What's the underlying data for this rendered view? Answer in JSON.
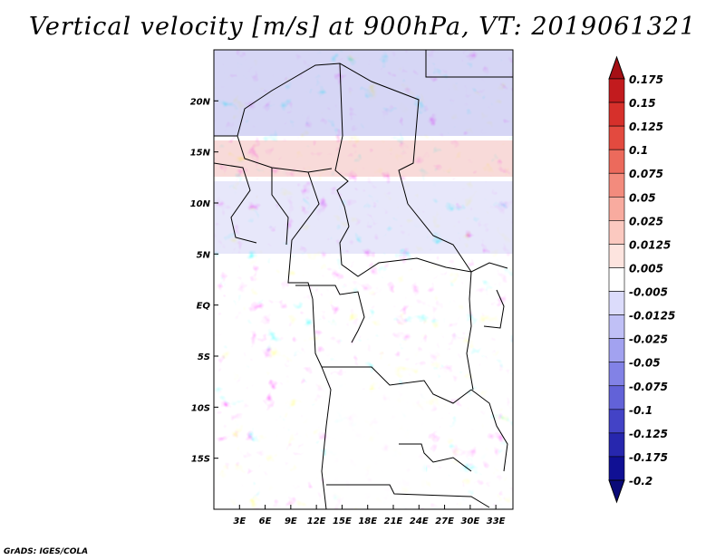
{
  "title": "Vertical velocity [m/s] at 900hPa, VT: 2019061321",
  "credit": "GrADS: IGES/COLA",
  "map": {
    "lon_labels": [
      "3E",
      "6E",
      "9E",
      "12E",
      "15E",
      "18E",
      "21E",
      "24E",
      "27E",
      "30E",
      "33E"
    ],
    "lon_values": [
      3,
      6,
      9,
      12,
      15,
      18,
      21,
      24,
      27,
      30,
      33
    ],
    "lat_labels": [
      "20N",
      "15N",
      "10N",
      "5N",
      "EQ",
      "5S",
      "10S",
      "15S"
    ],
    "lat_values": [
      20,
      15,
      10,
      5,
      0,
      -5,
      -10,
      -15
    ],
    "lon_range": [
      0,
      35
    ],
    "lat_range": [
      -20,
      25
    ]
  },
  "colorbar": {
    "labels": [
      "0.175",
      "0.15",
      "0.125",
      "0.1",
      "0.075",
      "0.05",
      "0.025",
      "0.0125",
      "0.005",
      "-0.005",
      "-0.0125",
      "-0.025",
      "-0.05",
      "-0.075",
      "-0.1",
      "-0.125",
      "-0.175",
      "-0.2"
    ],
    "colors": [
      "#a50f15",
      "#c21b1e",
      "#d6302b",
      "#e34a3f",
      "#ec6a5c",
      "#f38b7d",
      "#f8ab9f",
      "#fbc9c0",
      "#fde4df",
      "#ffffff",
      "#dcdcfb",
      "#c0c0f6",
      "#a2a2f0",
      "#8282e6",
      "#6262d8",
      "#4343c6",
      "#2727ae",
      "#101094",
      "#0a0a78"
    ]
  }
}
